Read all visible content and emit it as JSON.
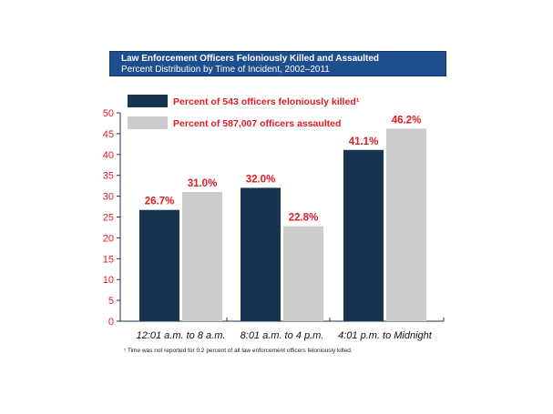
{
  "header": {
    "title": "Law Enforcement Officers Feloniously Killed and Assaulted",
    "subtitle": "Percent Distribution by Time of Incident, 2002–2011"
  },
  "chart_data": {
    "type": "bar",
    "categories": [
      "12:01 a.m. to 8 a.m.",
      "8:01 a.m. to 4 p.m.",
      "4:01 p.m. to Midnight"
    ],
    "series": [
      {
        "name": "Percent of 543 officers feloniously killed¹",
        "values": [
          26.7,
          32.0,
          41.1
        ],
        "labels": [
          "26.7%",
          "32.0%",
          "41.1%"
        ],
        "color": "#173550"
      },
      {
        "name": "Percent of 587,007 officers assaulted",
        "values": [
          31.0,
          22.8,
          46.2
        ],
        "labels": [
          "31.0%",
          "22.8%",
          "46.2%"
        ],
        "color": "#cccccc"
      }
    ],
    "ylim": [
      0,
      50
    ],
    "yticks": [
      "0",
      "5",
      "10",
      "15",
      "20",
      "25",
      "30",
      "35",
      "40",
      "45",
      "50"
    ],
    "label_color": "#e31b23",
    "legend_placement": "top-left",
    "grid": false
  },
  "footnote": "¹ Time was not reported for 0.2 percent of all law enforcement officers feloniously killed."
}
